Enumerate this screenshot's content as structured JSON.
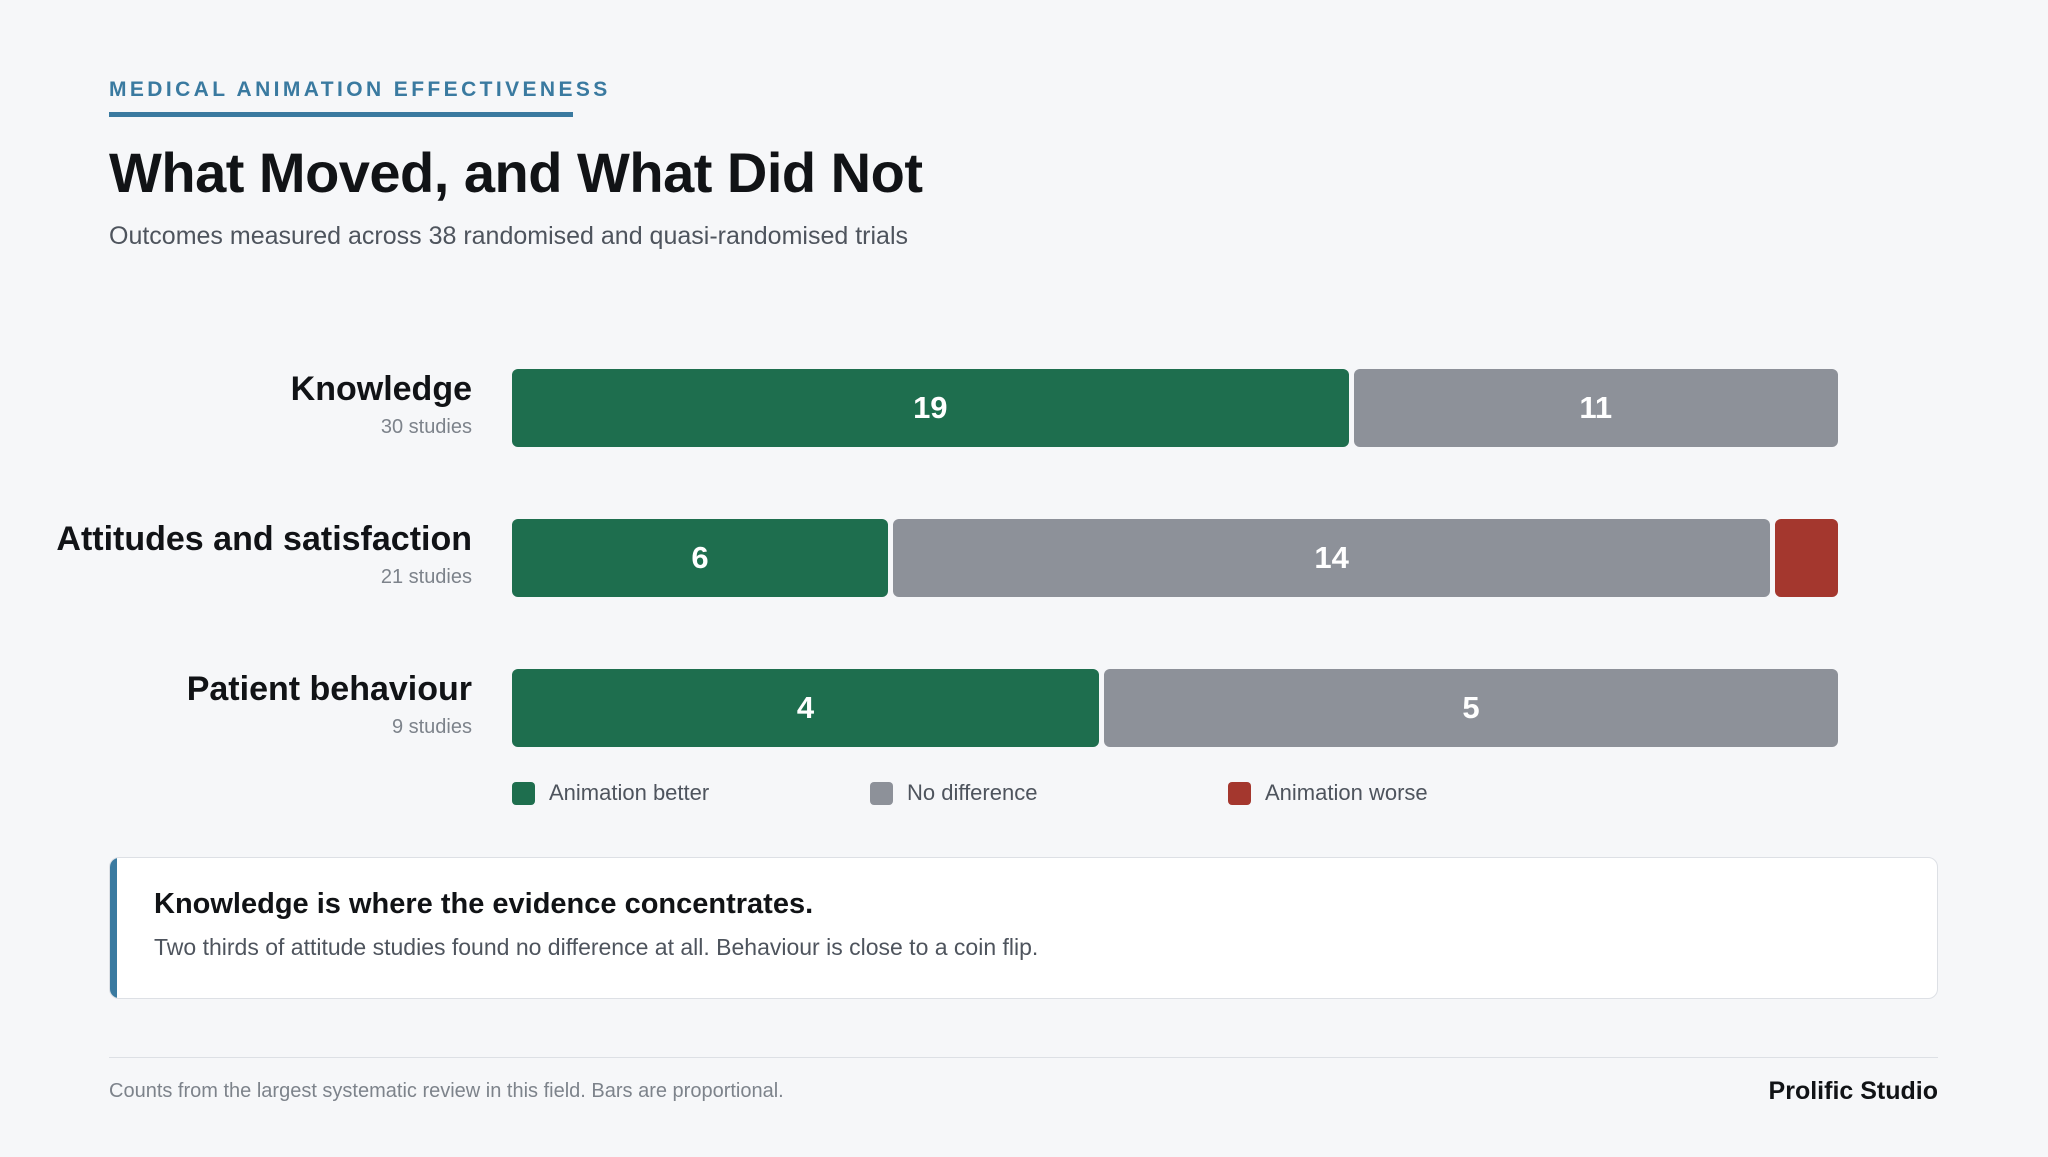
{
  "header": {
    "eyebrow": "MEDICAL ANIMATION EFFECTIVENESS",
    "title": "What Moved, and What Did Not",
    "subtitle": "Outcomes measured across 38 randomised and quasi-randomised trials"
  },
  "colors": {
    "better": "#1e6e4e",
    "no_difference": "#8d9199",
    "worse": "#a4372e",
    "accent": "#3a7aa0"
  },
  "chart_data": {
    "type": "bar",
    "orientation": "horizontal",
    "stacked": "proportional",
    "categories": [
      "Knowledge",
      "Attitudes and satisfaction",
      "Patient behaviour"
    ],
    "category_notes": [
      "30 studies",
      "21 studies",
      "9 studies"
    ],
    "series": [
      {
        "name": "Animation better",
        "color_key": "better",
        "values": [
          19,
          6,
          4
        ]
      },
      {
        "name": "No difference",
        "color_key": "no_difference",
        "values": [
          11,
          14,
          5
        ]
      },
      {
        "name": "Animation worse",
        "color_key": "worse",
        "values": [
          0,
          1,
          0
        ]
      }
    ],
    "legend_position": "bottom",
    "grid": false
  },
  "callout": {
    "heading": "Knowledge is where the evidence concentrates.",
    "body": "Two thirds of attitude studies found no difference at all. Behaviour is close to a coin flip."
  },
  "footer": {
    "note": "Counts from the largest systematic review in this field. Bars are proportional.",
    "brand": "Prolific Studio"
  }
}
